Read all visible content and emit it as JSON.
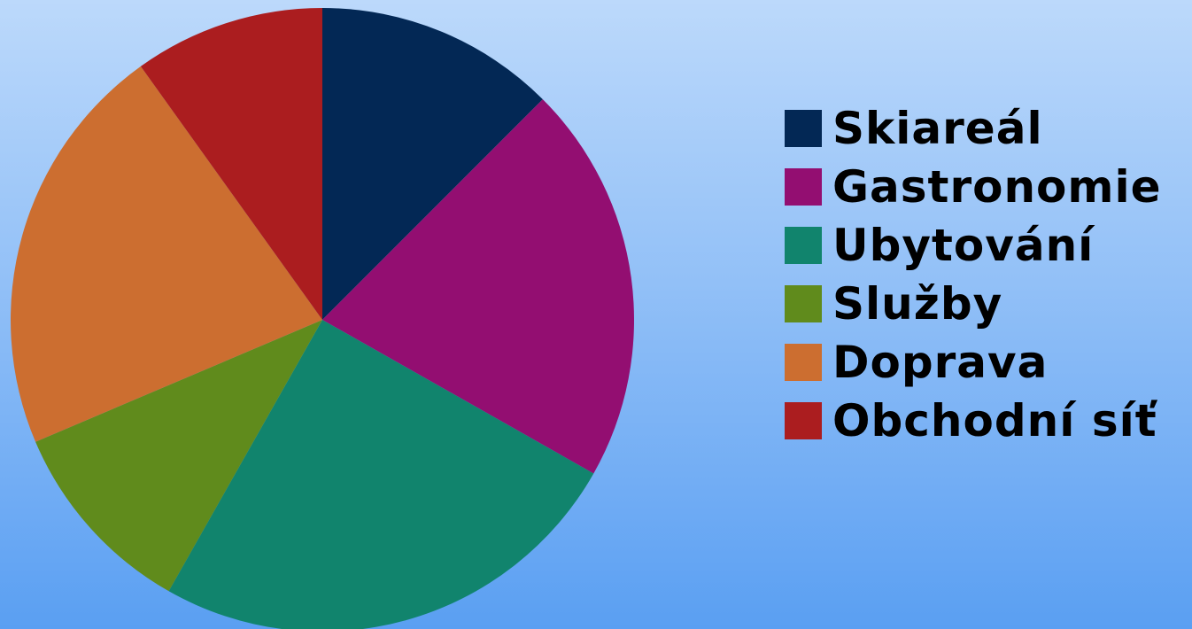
{
  "chart_data": {
    "type": "pie",
    "title": "",
    "start_angle": "12 o'clock",
    "direction": "clockwise",
    "legend_position": "right",
    "categories": [
      "Skiareál",
      "Gastronomie",
      "Ubytování",
      "Služby",
      "Doprava",
      "Obchodní síť"
    ],
    "values": [
      12.5,
      20.7,
      25.0,
      10.4,
      21.5,
      9.9
    ],
    "colors": [
      "#032855",
      "#930e71",
      "#11846d",
      "#608b1c",
      "#cc6e30",
      "#ab1d1f"
    ]
  }
}
